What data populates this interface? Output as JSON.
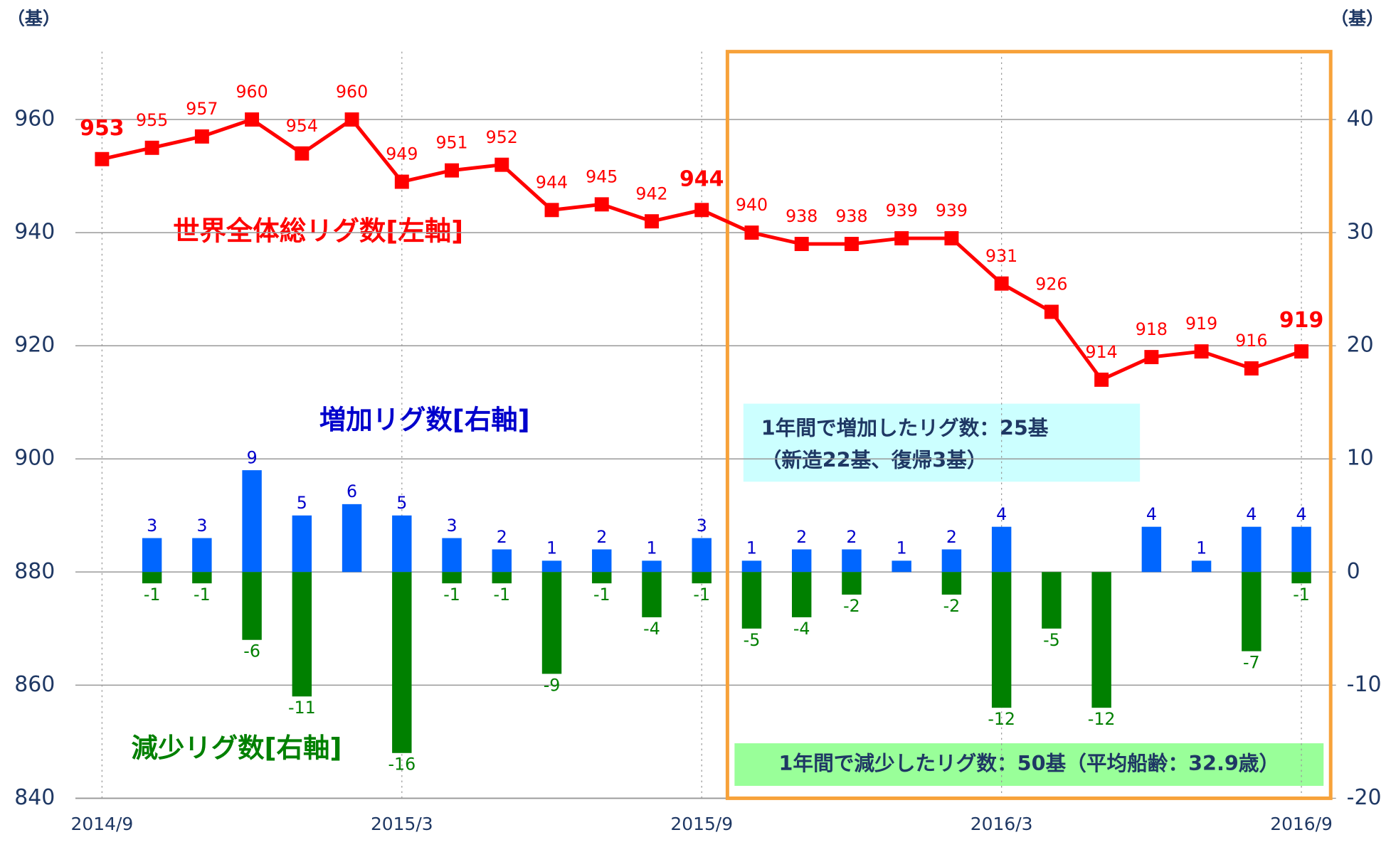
{
  "chart_data": {
    "type": "line-bar",
    "unit_left": "（基）",
    "unit_right": "（基）",
    "categories": [
      "2014/9",
      null,
      null,
      null,
      null,
      null,
      "2015/3",
      null,
      null,
      null,
      null,
      null,
      "2015/9",
      null,
      null,
      null,
      null,
      null,
      "2016/3",
      null,
      null,
      null,
      null,
      null,
      "2016/9"
    ],
    "series": [
      {
        "name": "世界全体総リグ数[左軸]",
        "color": "#ff0000",
        "axis": "y",
        "kind": "line",
        "values": [
          953,
          955,
          957,
          960,
          954,
          960,
          949,
          951,
          952,
          944,
          945,
          942,
          944,
          940,
          938,
          938,
          939,
          939,
          931,
          926,
          914,
          918,
          919,
          916,
          919
        ],
        "emphasized_labels": [
          0,
          12,
          24
        ]
      },
      {
        "name": "増加リグ数[右軸]",
        "color": "#0066ff",
        "label_color": "#0000cc",
        "axis": "y2",
        "kind": "bar",
        "values": [
          null,
          3,
          3,
          9,
          5,
          6,
          5,
          3,
          2,
          1,
          2,
          1,
          3,
          1,
          2,
          2,
          1,
          2,
          4,
          null,
          null,
          4,
          1,
          4,
          4
        ]
      },
      {
        "name": "減少リグ数[右軸]",
        "color": "#008000",
        "label_color": "#008000",
        "axis": "y2",
        "kind": "bar",
        "values": [
          null,
          -1,
          -1,
          -6,
          -11,
          null,
          -16,
          -1,
          -1,
          -9,
          -1,
          -4,
          -1,
          -5,
          -4,
          -2,
          null,
          -2,
          -12,
          -5,
          -12,
          null,
          null,
          -7,
          -1
        ]
      }
    ],
    "annotations": [
      "1年間で増加したリグ数：25基",
      "（新造22基、復帰3基）",
      "1年間で減少したリグ数：50基（平均船齢：32.9歳）"
    ],
    "ylim": [
      840,
      972
    ],
    "yticks": [
      840,
      860,
      880,
      900,
      920,
      940,
      960
    ],
    "y2lim": [
      -20,
      46
    ],
    "y2ticks": [
      -20,
      -10,
      0,
      10,
      20,
      30,
      40
    ],
    "grid": true
  }
}
